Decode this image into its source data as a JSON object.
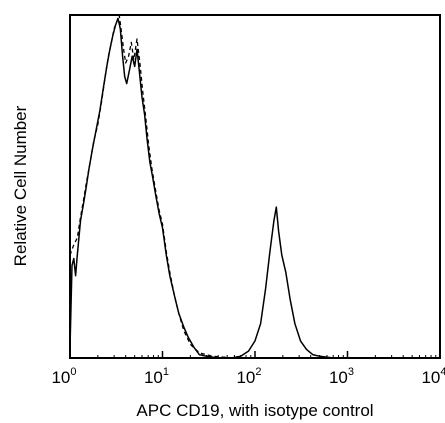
{
  "chart_data": {
    "type": "line",
    "title": "",
    "xlabel": "APC CD19, with isotype control",
    "ylabel": "Relative Cell Number",
    "x_scale": "log",
    "xlim": [
      1,
      10000
    ],
    "ylim": [
      0,
      1
    ],
    "x_ticks": [
      {
        "base": "10",
        "exp": "0"
      },
      {
        "base": "10",
        "exp": "1"
      },
      {
        "base": "10",
        "exp": "2"
      },
      {
        "base": "10",
        "exp": "3"
      },
      {
        "base": "10",
        "exp": "4"
      }
    ],
    "grid": false,
    "legend": false,
    "series": [
      {
        "style": "solid",
        "color": "#000000",
        "points": [
          [
            1.0,
            0.03
          ],
          [
            1.05,
            0.27
          ],
          [
            1.1,
            0.29
          ],
          [
            1.15,
            0.24
          ],
          [
            1.2,
            0.3
          ],
          [
            1.3,
            0.4
          ],
          [
            1.4,
            0.45
          ],
          [
            1.5,
            0.5
          ],
          [
            1.6,
            0.55
          ],
          [
            1.75,
            0.61
          ],
          [
            1.9,
            0.66
          ],
          [
            2.1,
            0.72
          ],
          [
            2.3,
            0.79
          ],
          [
            2.5,
            0.85
          ],
          [
            2.7,
            0.9
          ],
          [
            2.9,
            0.94
          ],
          [
            3.1,
            0.97
          ],
          [
            3.3,
            0.99
          ],
          [
            3.5,
            0.96
          ],
          [
            3.7,
            0.88
          ],
          [
            3.9,
            0.82
          ],
          [
            4.1,
            0.8
          ],
          [
            4.4,
            0.84
          ],
          [
            4.7,
            0.88
          ],
          [
            5.0,
            0.85
          ],
          [
            5.3,
            0.9
          ],
          [
            5.6,
            0.84
          ],
          [
            6.0,
            0.76
          ],
          [
            6.4,
            0.71
          ],
          [
            6.8,
            0.64
          ],
          [
            7.3,
            0.57
          ],
          [
            7.8,
            0.53
          ],
          [
            8.5,
            0.47
          ],
          [
            9.2,
            0.42
          ],
          [
            10.0,
            0.38
          ],
          [
            11.0,
            0.3
          ],
          [
            12.0,
            0.24
          ],
          [
            13.5,
            0.18
          ],
          [
            15.0,
            0.13
          ],
          [
            17.0,
            0.09
          ],
          [
            19.0,
            0.06
          ],
          [
            22.0,
            0.03
          ],
          [
            25.0,
            0.01
          ],
          [
            30.0,
            0.005
          ],
          [
            40.0,
            0.0
          ],
          [
            55.0,
            0.0
          ],
          [
            70.0,
            0.005
          ],
          [
            85.0,
            0.02
          ],
          [
            100.0,
            0.05
          ],
          [
            115.0,
            0.1
          ],
          [
            130.0,
            0.2
          ],
          [
            145.0,
            0.31
          ],
          [
            160.0,
            0.4
          ],
          [
            170.0,
            0.44
          ],
          [
            180.0,
            0.37
          ],
          [
            195.0,
            0.3
          ],
          [
            215.0,
            0.25
          ],
          [
            240.0,
            0.17
          ],
          [
            270.0,
            0.1
          ],
          [
            310.0,
            0.05
          ],
          [
            360.0,
            0.025
          ],
          [
            420.0,
            0.01
          ],
          [
            500.0,
            0.005
          ],
          [
            700.0,
            0.0
          ],
          [
            1000.0,
            0.0
          ],
          [
            3000.0,
            0.0
          ],
          [
            10000.0,
            0.0
          ]
        ]
      },
      {
        "style": "dashed",
        "color": "#000000",
        "points": [
          [
            1.0,
            0.3
          ],
          [
            1.1,
            0.33
          ],
          [
            1.2,
            0.35
          ],
          [
            1.3,
            0.41
          ],
          [
            1.4,
            0.46
          ],
          [
            1.5,
            0.51
          ],
          [
            1.65,
            0.57
          ],
          [
            1.8,
            0.63
          ],
          [
            2.0,
            0.68
          ],
          [
            2.2,
            0.75
          ],
          [
            2.4,
            0.82
          ],
          [
            2.6,
            0.88
          ],
          [
            2.8,
            0.92
          ],
          [
            3.0,
            0.96
          ],
          [
            3.2,
            0.98
          ],
          [
            3.4,
            1.0
          ],
          [
            3.6,
            0.95
          ],
          [
            3.8,
            0.9
          ],
          [
            4.0,
            0.86
          ],
          [
            4.3,
            0.88
          ],
          [
            4.6,
            0.92
          ],
          [
            4.9,
            0.87
          ],
          [
            5.3,
            0.93
          ],
          [
            5.7,
            0.86
          ],
          [
            6.1,
            0.78
          ],
          [
            6.6,
            0.7
          ],
          [
            7.1,
            0.62
          ],
          [
            7.7,
            0.55
          ],
          [
            8.4,
            0.49
          ],
          [
            9.2,
            0.43
          ],
          [
            10.0,
            0.39
          ],
          [
            11.0,
            0.31
          ],
          [
            12.0,
            0.25
          ],
          [
            13.5,
            0.18
          ],
          [
            15.0,
            0.13
          ],
          [
            17.0,
            0.08
          ],
          [
            20.0,
            0.04
          ],
          [
            25.0,
            0.015
          ],
          [
            35.0,
            0.005
          ],
          [
            60.0,
            0.0
          ],
          [
            300.0,
            0.0
          ],
          [
            10000.0,
            0.0
          ]
        ]
      }
    ]
  }
}
